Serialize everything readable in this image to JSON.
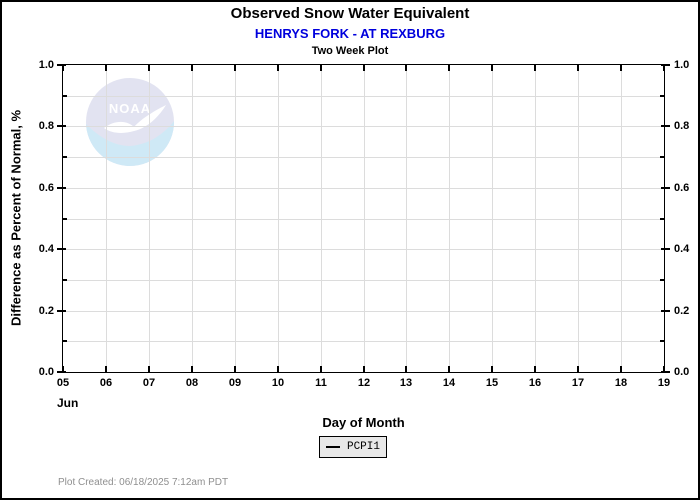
{
  "header": {
    "title": "Observed Snow Water Equivalent",
    "subtitle": "HENRYS FORK - AT REXBURG",
    "plot_type": "Two Week Plot"
  },
  "chart_data": {
    "type": "line",
    "title": "Observed Snow Water Equivalent",
    "subtitle": "HENRYS FORK - AT REXBURG",
    "xlabel": "Day of Month",
    "ylabel": "Difference as Percent of Normal, %",
    "month_label": "Jun",
    "x_tick_labels": [
      "05",
      "06",
      "07",
      "08",
      "09",
      "10",
      "11",
      "12",
      "13",
      "14",
      "15",
      "16",
      "17",
      "18",
      "19"
    ],
    "y_tick_labels": [
      "0.0",
      "0.2",
      "0.4",
      "0.6",
      "0.8",
      "1.0"
    ],
    "ylim": [
      0.0,
      1.0
    ],
    "y_major_step": 0.2,
    "y_minor_step": 0.1,
    "grid": true,
    "legend_position": "bottom-center",
    "series": [
      {
        "name": "PCPI1",
        "color": "#000000",
        "values": []
      }
    ],
    "data_plotted": false
  },
  "watermark": {
    "name": "noaa-logo",
    "text": "NOAA"
  },
  "legend": {
    "items": [
      {
        "label": "PCPI1",
        "line_color": "#000000"
      }
    ],
    "background": "#e8e8e8"
  },
  "footer": {
    "created": "Plot Created: 06/18/2025 7:12am PDT"
  },
  "colors": {
    "subtitle_blue": "#0000dd",
    "grid": "#dcdcdc",
    "axis": "#000000",
    "footer_gray": "#8f8f8f",
    "legend_bg": "#e8e8e8",
    "logo_top": "#e2e3f1",
    "logo_bottom": "#cfe9f6",
    "logo_text": "#ffffff"
  }
}
